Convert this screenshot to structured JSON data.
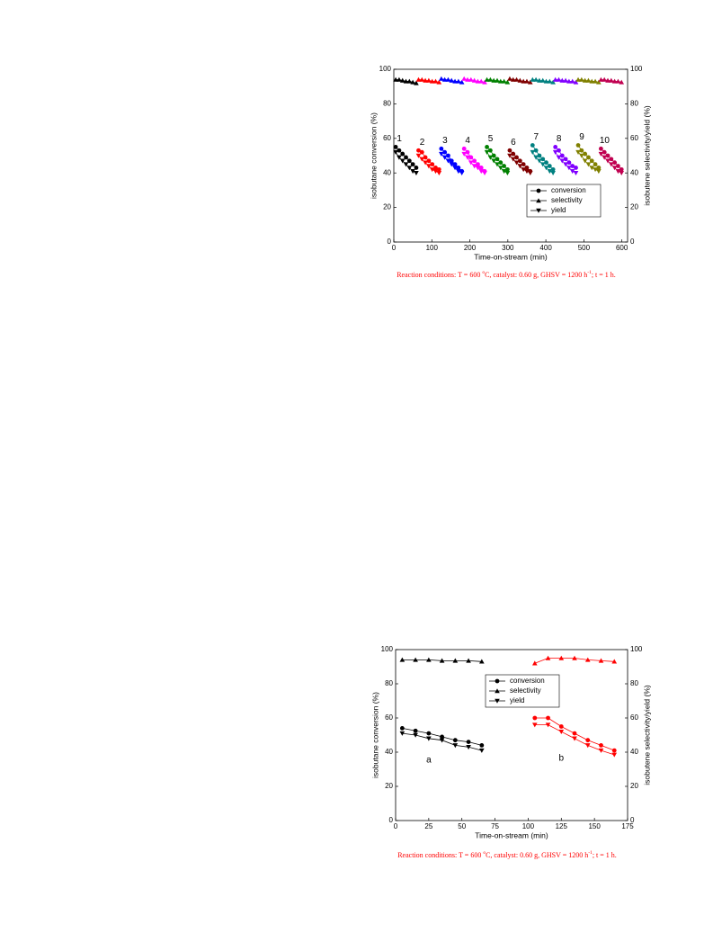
{
  "chart_data": [
    {
      "type": "line",
      "x_label": "Time-on-stream (min)",
      "y_label": "isobutane conversion (%)",
      "y2_label": "isobutene selectivity/yield (%)",
      "xlim": [
        0,
        615
      ],
      "xticks": [
        0,
        100,
        200,
        300,
        400,
        500,
        600
      ],
      "ylim": [
        0,
        100
      ],
      "yticks": [
        0,
        20,
        40,
        60,
        80,
        100
      ],
      "y2lim": [
        0,
        100
      ],
      "y2ticks": [
        0,
        20,
        40,
        60,
        80,
        100
      ],
      "legend": {
        "position": "lower right",
        "entries": [
          {
            "name": "conversion",
            "marker": "circle",
            "axis": "y"
          },
          {
            "name": "selectivity",
            "marker": "triangle-up",
            "axis": "y2"
          },
          {
            "name": "yield",
            "marker": "triangle-down",
            "axis": "y2"
          }
        ]
      },
      "group_label_position": "above",
      "groups": [
        {
          "label": "1",
          "color": "#000000",
          "x": [
            5,
            14,
            23,
            32,
            41,
            50,
            59
          ],
          "conversion": [
            55,
            53,
            51,
            49,
            47,
            45,
            43
          ],
          "selectivity": [
            94,
            94,
            93.5,
            93,
            93,
            92.5,
            92
          ],
          "yield": [
            52,
            49,
            47,
            45,
            43,
            41,
            40
          ]
        },
        {
          "label": "2",
          "color": "#ff0000",
          "x": [
            65,
            74,
            83,
            92,
            101,
            110,
            119
          ],
          "conversion": [
            53,
            52,
            49,
            47,
            45,
            43,
            42
          ],
          "selectivity": [
            94,
            94,
            93.5,
            93.5,
            93,
            93,
            92.5
          ],
          "yield": [
            50,
            48,
            46,
            44,
            42,
            41,
            40
          ]
        },
        {
          "label": "3",
          "color": "#0000ff",
          "x": [
            125,
            134,
            143,
            152,
            161,
            170,
            179
          ],
          "conversion": [
            54,
            52,
            50,
            47,
            45,
            43,
            41
          ],
          "selectivity": [
            94.5,
            94,
            94,
            93.5,
            93,
            93,
            92.5
          ],
          "yield": [
            51,
            49,
            47,
            45,
            43,
            41,
            40
          ]
        },
        {
          "label": "4",
          "color": "#ff00ff",
          "x": [
            185,
            194,
            203,
            212,
            221,
            230,
            239
          ],
          "conversion": [
            54,
            52,
            49,
            47,
            45,
            43,
            41
          ],
          "selectivity": [
            94.5,
            94,
            94,
            93.5,
            93,
            93,
            92.5
          ],
          "yield": [
            51,
            49,
            46,
            44,
            43,
            41,
            40
          ]
        },
        {
          "label": "5",
          "color": "#008000",
          "x": [
            245,
            254,
            263,
            272,
            281,
            290,
            299
          ],
          "conversion": [
            55,
            53,
            50,
            48,
            46,
            44,
            42
          ],
          "selectivity": [
            94,
            94,
            93.5,
            93.5,
            93,
            93,
            92.5
          ],
          "yield": [
            52,
            49,
            47,
            45,
            43,
            41,
            40
          ]
        },
        {
          "label": "6",
          "color": "#800000",
          "x": [
            305,
            314,
            323,
            332,
            341,
            350,
            359
          ],
          "conversion": [
            53,
            51,
            49,
            47,
            45,
            43,
            41
          ],
          "selectivity": [
            94.5,
            94,
            94,
            93.5,
            93,
            93,
            92.5
          ],
          "yield": [
            50,
            48,
            46,
            44,
            42,
            41,
            40
          ]
        },
        {
          "label": "7",
          "color": "#008080",
          "x": [
            365,
            374,
            383,
            392,
            401,
            410,
            419
          ],
          "conversion": [
            56,
            53,
            50,
            48,
            46,
            44,
            42
          ],
          "selectivity": [
            94,
            94,
            93.5,
            93.5,
            93,
            93,
            92.5
          ],
          "yield": [
            52,
            49,
            47,
            45,
            43,
            41,
            40
          ]
        },
        {
          "label": "8",
          "color": "#8000ff",
          "x": [
            425,
            434,
            443,
            452,
            461,
            470,
            479
          ],
          "conversion": [
            55,
            53,
            50,
            48,
            46,
            44,
            43
          ],
          "selectivity": [
            94,
            94,
            93.5,
            93.5,
            93,
            93,
            92.5
          ],
          "yield": [
            52,
            49,
            47,
            45,
            43,
            41,
            40
          ]
        },
        {
          "label": "9",
          "color": "#808000",
          "x": [
            485,
            494,
            503,
            512,
            521,
            530,
            539
          ],
          "conversion": [
            56,
            53,
            51,
            49,
            47,
            45,
            43
          ],
          "selectivity": [
            94,
            94,
            93.5,
            93.5,
            93,
            93,
            92.5
          ],
          "yield": [
            52,
            50,
            47,
            45,
            43,
            42,
            41
          ]
        },
        {
          "label": "10",
          "color": "#c00050",
          "x": [
            545,
            554,
            563,
            572,
            581,
            590,
            599
          ],
          "conversion": [
            54,
            52,
            50,
            48,
            46,
            44,
            42
          ],
          "selectivity": [
            94,
            94,
            93.5,
            93.5,
            93,
            93,
            92.5
          ],
          "yield": [
            51,
            49,
            47,
            45,
            43,
            41,
            40
          ]
        }
      ],
      "note": [
        "Reaction conditions: T = 600 ",
        "o",
        "C, catalyst: 0.60 g, GHSV = 1200 h",
        "-1",
        "; t = 1 h."
      ]
    },
    {
      "type": "line",
      "x_label": "Time-on-stream (min)",
      "y_label": "isobutane conversion (%)",
      "y2_label": "isobutene selectivity/yield (%)",
      "xlim": [
        0,
        175
      ],
      "xticks": [
        0,
        25,
        50,
        75,
        100,
        125,
        150,
        175
      ],
      "ylim": [
        0,
        100
      ],
      "yticks": [
        0,
        20,
        40,
        60,
        80,
        100
      ],
      "y2lim": [
        0,
        100
      ],
      "y2ticks": [
        0,
        20,
        40,
        60,
        80,
        100
      ],
      "legend": {
        "position": "upper center",
        "entries": [
          {
            "name": "conversion",
            "marker": "circle",
            "axis": "y"
          },
          {
            "name": "selectivity",
            "marker": "triangle-up",
            "axis": "y2"
          },
          {
            "name": "yield",
            "marker": "triangle-down",
            "axis": "y2"
          }
        ]
      },
      "group_label_position": "below",
      "groups": [
        {
          "label": "a",
          "color": "#000000",
          "x": [
            5,
            15,
            25,
            35,
            45,
            55,
            65
          ],
          "conversion": [
            54,
            52.5,
            51,
            49,
            47,
            46,
            44
          ],
          "selectivity": [
            94,
            94,
            94,
            93.5,
            93.5,
            93.5,
            93
          ],
          "yield": [
            51,
            50,
            48,
            47,
            44,
            43,
            41
          ]
        },
        {
          "label": "b",
          "color": "#ff0000",
          "x": [
            105,
            115,
            125,
            135,
            145,
            155,
            165
          ],
          "conversion": [
            60,
            60,
            55,
            51,
            47,
            44,
            41
          ],
          "selectivity": [
            92,
            95,
            95,
            95,
            94,
            93.5,
            93
          ],
          "yield": [
            56,
            56,
            52,
            48,
            44,
            41,
            38.5
          ]
        }
      ],
      "note": [
        "Reaction conditions: T = 600 ",
        "o",
        "C, catalyst: 0.60 g, GHSV = 1200 h",
        "-1",
        "; t = 1 h."
      ]
    }
  ]
}
